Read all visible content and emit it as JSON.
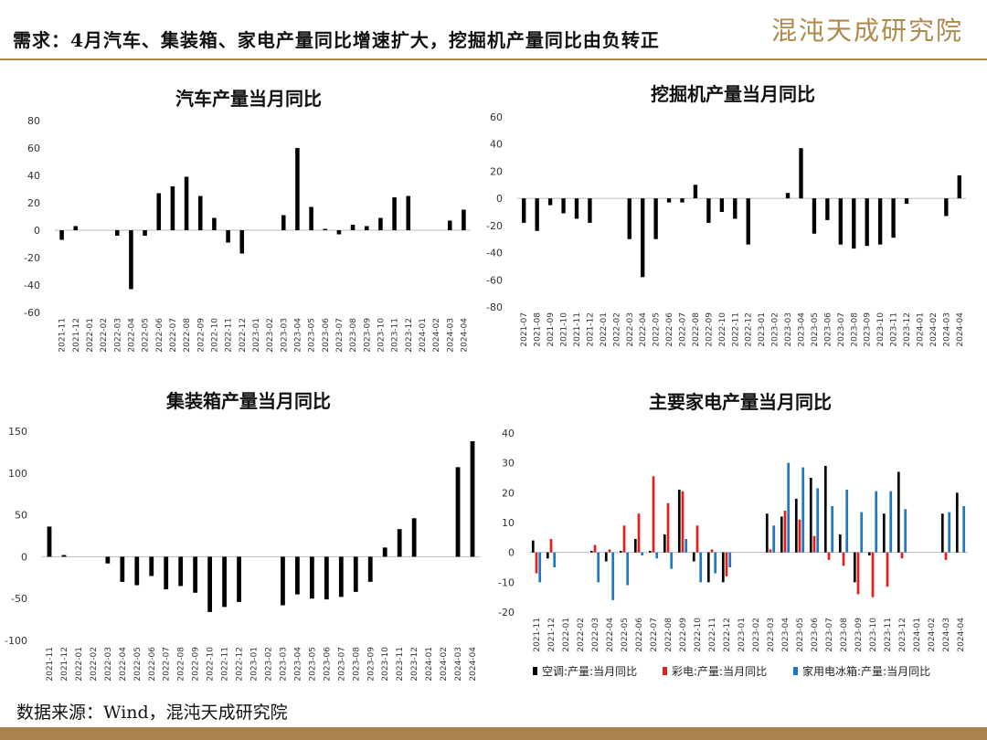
{
  "header": {
    "title": "需求：4月汽车、集装箱、家电产量同比增速扩大，挖掘机产量同比由负转正",
    "logo": "混沌天成研究院"
  },
  "footer": {
    "source": "数据来源：Wind，混沌天成研究院"
  },
  "colors": {
    "black": "#000000",
    "red": "#e02020",
    "blue": "#1f77c0",
    "accent": "#b08a4a"
  },
  "chart_data": [
    {
      "type": "bar",
      "title": "汽车产量当月同比",
      "ylim": [
        -60,
        80
      ],
      "yticks": [
        80,
        60,
        40,
        20,
        0,
        -20,
        -40,
        -60
      ],
      "categories": [
        "2021-11",
        "2021-12",
        "2022-01",
        "2022-02",
        "2022-03",
        "2022-04",
        "2022-05",
        "2022-06",
        "2022-07",
        "2022-08",
        "2022-09",
        "2022-10",
        "2022-11",
        "2022-12",
        "2023-01",
        "2023-02",
        "2023-03",
        "2023-04",
        "2023-05",
        "2023-06",
        "2023-07",
        "2023-08",
        "2023-09",
        "2023-10",
        "2023-11",
        "2023-12",
        "2024-01",
        "2024-02",
        "2024-03",
        "2024-04"
      ],
      "values": [
        -7,
        3,
        null,
        null,
        -4,
        -43,
        -4,
        27,
        32,
        39,
        25,
        9,
        -9,
        -17,
        null,
        null,
        11,
        60,
        17,
        1,
        -3,
        4,
        3,
        9,
        24,
        25,
        null,
        null,
        7,
        15
      ]
    },
    {
      "type": "bar",
      "title": "挖掘机产量当月同比",
      "ylim": [
        -80,
        60
      ],
      "yticks": [
        60,
        40,
        20,
        0,
        -20,
        -40,
        -60,
        -80
      ],
      "categories": [
        "2021-07",
        "2021-08",
        "2021-09",
        "2021-10",
        "2021-11",
        "2021-12",
        "2022-01",
        "2022-02",
        "2022-03",
        "2022-04",
        "2022-05",
        "2022-06",
        "2022-07",
        "2022-08",
        "2022-09",
        "2022-10",
        "2022-11",
        "2022-12",
        "2023-01",
        "2023-02",
        "2023-03",
        "2023-04",
        "2023-05",
        "2023-06",
        "2023-07",
        "2023-08",
        "2023-09",
        "2023-10",
        "2023-11",
        "2023-12",
        "2024-01",
        "2024-02",
        "2024-03",
        "2024-04"
      ],
      "values": [
        -18,
        -24,
        -5,
        -11,
        -15,
        -18,
        null,
        null,
        -30,
        -58,
        -30,
        -3,
        -3,
        10,
        -18,
        -10,
        -15,
        -34,
        null,
        null,
        4,
        37,
        -26,
        -16,
        -34,
        -37,
        -35,
        -34,
        -29,
        -4,
        null,
        null,
        -13,
        17
      ]
    },
    {
      "type": "bar",
      "title": "集装箱产量当月同比",
      "ylim": [
        -100,
        150
      ],
      "yticks": [
        150,
        100,
        50,
        0,
        -50,
        -100
      ],
      "categories": [
        "2021-11",
        "2021-12",
        "2022-01",
        "2022-02",
        "2022-03",
        "2022-04",
        "2022-05",
        "2022-06",
        "2022-07",
        "2022-08",
        "2022-09",
        "2022-10",
        "2022-11",
        "2022-12",
        "2023-01",
        "2023-02",
        "2023-03",
        "2023-04",
        "2023-05",
        "2023-06",
        "2023-07",
        "2023-08",
        "2023-09",
        "2023-10",
        "2023-11",
        "2023-12",
        "2024-01",
        "2024-02",
        "2024-03",
        "2024-04"
      ],
      "values": [
        36,
        2,
        null,
        null,
        -8,
        -30,
        -34,
        -23,
        -39,
        -35,
        -43,
        -66,
        -60,
        -54,
        null,
        null,
        -58,
        -45,
        -50,
        -51,
        -48,
        -42,
        -30,
        11,
        33,
        46,
        null,
        null,
        107,
        138
      ]
    },
    {
      "type": "bar",
      "title": "主要家电产量当月同比",
      "ylim": [
        -20,
        40
      ],
      "yticks": [
        40,
        30,
        20,
        10,
        0,
        -10,
        -20
      ],
      "legend_position": "bottom",
      "categories": [
        "2021-11",
        "2021-12",
        "2022-01",
        "2022-02",
        "2022-03",
        "2022-04",
        "2022-05",
        "2022-06",
        "2022-07",
        "2022-08",
        "2022-09",
        "2022-10",
        "2022-11",
        "2022-12",
        "2023-01",
        "2023-02",
        "2023-03",
        "2023-04",
        "2023-05",
        "2023-06",
        "2023-07",
        "2023-08",
        "2023-09",
        "2023-10",
        "2023-11",
        "2023-12",
        "2024-01",
        "2024-02",
        "2024-03",
        "2024-04"
      ],
      "series": [
        {
          "name": "空调:产量:当月同比",
          "color": "#000000",
          "values": [
            4,
            -2,
            null,
            null,
            0.5,
            -3,
            0.5,
            4.5,
            0.5,
            6,
            21,
            -3,
            -10,
            -10,
            null,
            null,
            13,
            12,
            18,
            25,
            29,
            6,
            -10,
            -1,
            13,
            27,
            null,
            null,
            13,
            20
          ]
        },
        {
          "name": "彩电:产量:当月同比",
          "color": "#e02020",
          "values": [
            -7,
            4.5,
            null,
            null,
            2.5,
            1,
            9,
            13,
            25.5,
            16.5,
            20.5,
            9,
            1,
            -8,
            null,
            null,
            1,
            14,
            11,
            5.5,
            -2.5,
            -4.5,
            -14,
            -15,
            -11.5,
            -2,
            null,
            null,
            -2.5,
            null
          ]
        },
        {
          "name": "家用电冰箱:产量:当月同比",
          "color": "#1f77c0",
          "values": [
            -10,
            -5,
            null,
            null,
            -10,
            -16,
            -11,
            -1,
            -2,
            -5.5,
            4.5,
            -10,
            -7,
            -5,
            null,
            null,
            9,
            30,
            28.5,
            21.5,
            15.5,
            21,
            13.5,
            20.5,
            20.5,
            14.5,
            null,
            null,
            13.5,
            15.5
          ]
        }
      ]
    }
  ]
}
